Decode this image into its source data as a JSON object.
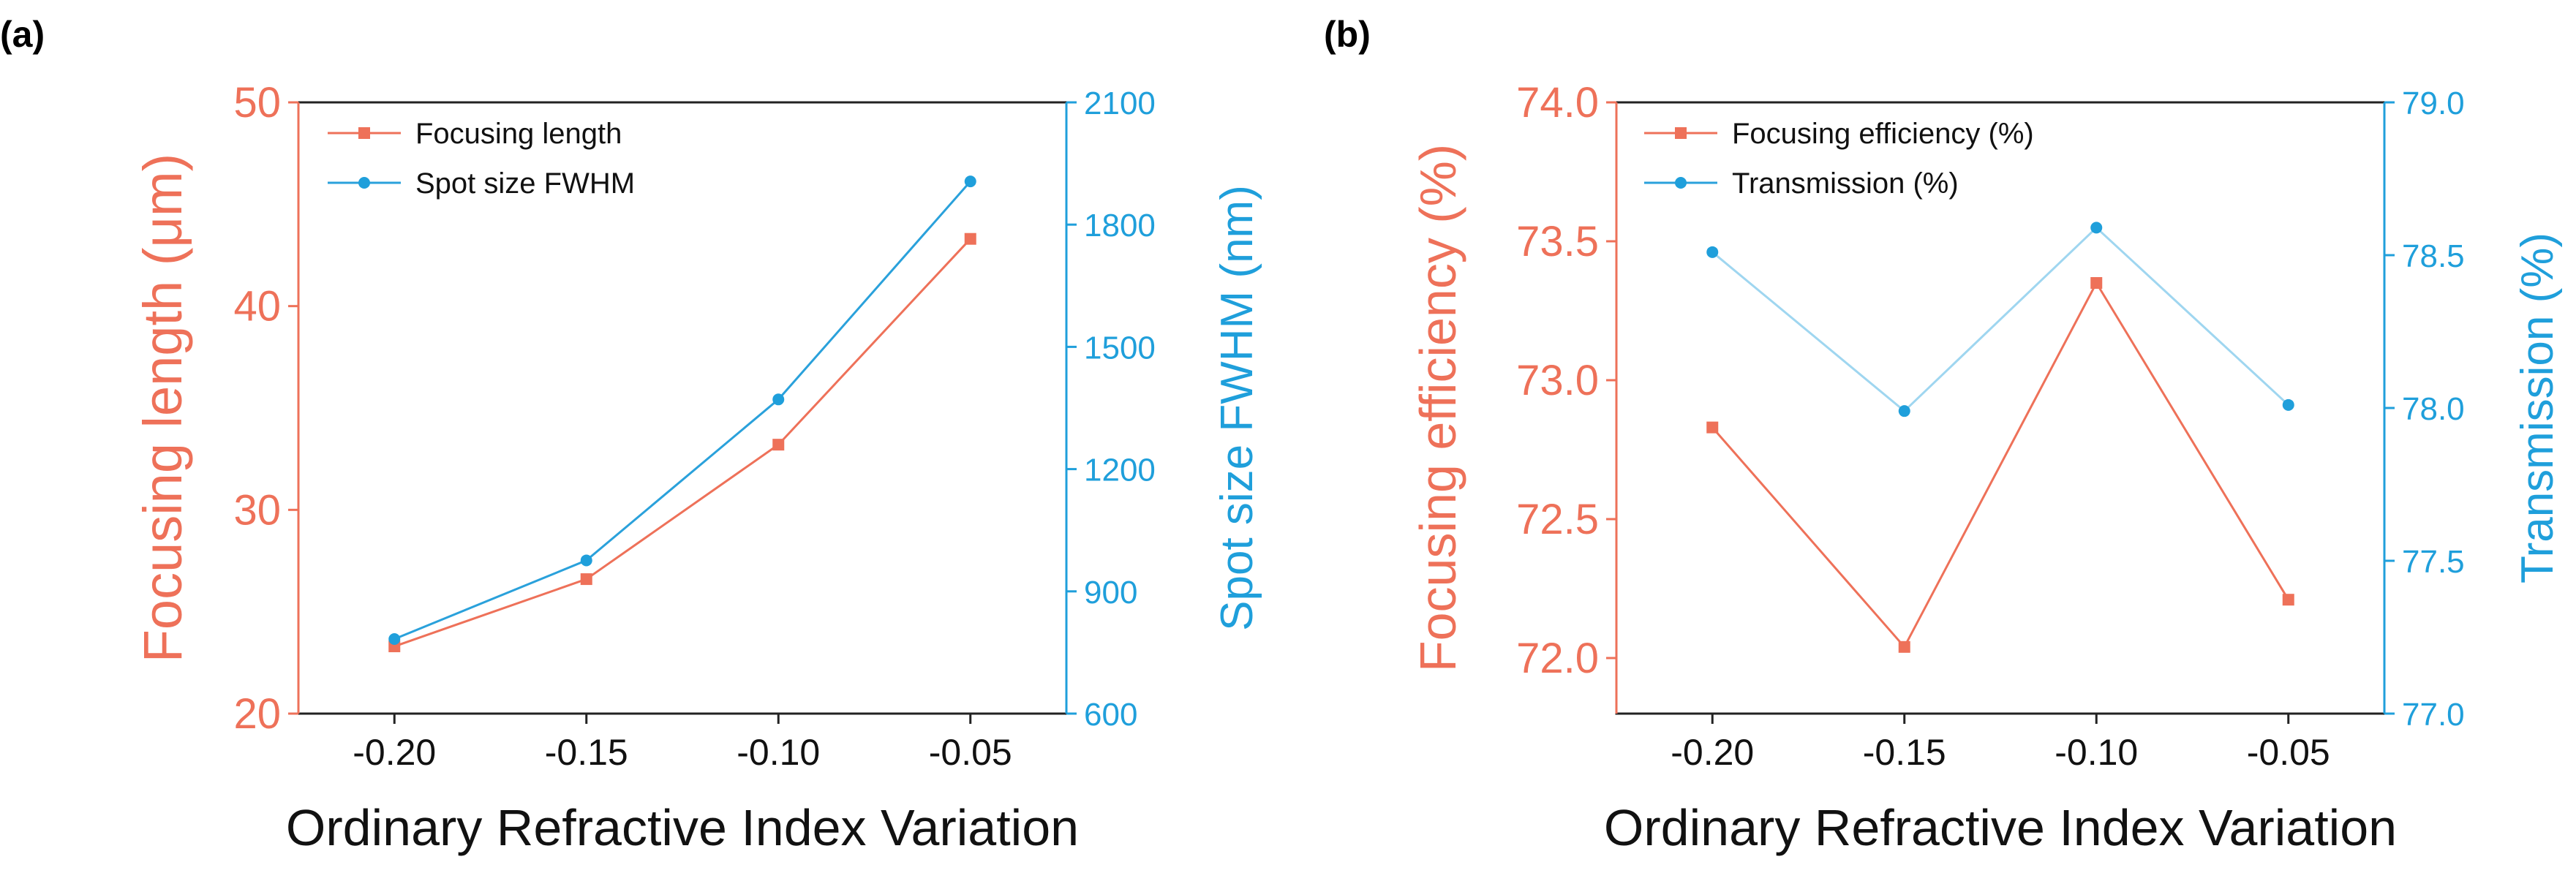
{
  "figure": {
    "colors": {
      "left_axis": "#ee7159",
      "right_axis": "#1f9fdb",
      "axis_frame": "#222222",
      "series_a_line": "#ee7159",
      "series_a_marker": "#ee7159",
      "series_b_line": "#2aa1db",
      "series_b_line_light": "#9fd6f0",
      "series_b_marker": "#1f9fdb"
    }
  },
  "chart_data": [
    {
      "type": "line",
      "panel_label": "(a)",
      "xlabel": "Ordinary Refractive Index Variation",
      "ylabel_left": "Focusing length (μm)",
      "ylabel_right": "Spot size FWHM (nm)",
      "x": [
        -0.2,
        -0.15,
        -0.1,
        -0.05
      ],
      "x_tick_labels": [
        "-0.20",
        "-0.15",
        "-0.10",
        "-0.05"
      ],
      "xlim": [
        -0.225,
        -0.025
      ],
      "ylim_left": [
        20,
        50
      ],
      "y_ticks_left": [
        20,
        30,
        40,
        50
      ],
      "y_tick_labels_left": [
        "20",
        "30",
        "40",
        "50"
      ],
      "ylim_right": [
        600,
        2100
      ],
      "y_ticks_right": [
        600,
        900,
        1200,
        1500,
        1800,
        2100
      ],
      "y_tick_labels_right": [
        "600",
        "900",
        "1200",
        "1500",
        "1800",
        "2100"
      ],
      "grid": false,
      "legend_position": "top-left",
      "series": [
        {
          "name": "Focusing length",
          "axis": "left",
          "marker": "square",
          "values": [
            23.3,
            26.6,
            33.2,
            43.3
          ]
        },
        {
          "name": "Spot size FWHM",
          "axis": "right",
          "marker": "circle",
          "values": [
            783,
            976,
            1371,
            1906
          ]
        }
      ]
    },
    {
      "type": "line",
      "panel_label": "(b)",
      "xlabel": "Ordinary Refractive Index Variation",
      "ylabel_left": "Focusing efficiency (%)",
      "ylabel_right": "Transmission (%)",
      "x": [
        -0.2,
        -0.15,
        -0.1,
        -0.05
      ],
      "x_tick_labels": [
        "-0.20",
        "-0.15",
        "-0.10",
        "-0.05"
      ],
      "xlim": [
        -0.225,
        -0.025
      ],
      "ylim_left": [
        71.8,
        74.0
      ],
      "y_ticks_left": [
        72.0,
        72.5,
        73.0,
        73.5,
        74.0
      ],
      "y_tick_labels_left": [
        "72.0",
        "72.5",
        "73.0",
        "73.5",
        "74.0"
      ],
      "ylim_right": [
        77.0,
        79.0
      ],
      "y_ticks_right": [
        77.0,
        77.5,
        78.0,
        78.5,
        79.0
      ],
      "y_tick_labels_right": [
        "77.0",
        "77.5",
        "78.0",
        "78.5",
        "79.0"
      ],
      "grid": false,
      "legend_position": "top-left",
      "series": [
        {
          "name": "Focusing efficiency (%)",
          "axis": "left",
          "marker": "square",
          "values": [
            72.83,
            72.04,
            73.35,
            72.21
          ]
        },
        {
          "name": "Transmission (%)",
          "axis": "right",
          "marker": "circle",
          "values": [
            78.51,
            77.99,
            78.59,
            78.01
          ]
        }
      ]
    }
  ]
}
